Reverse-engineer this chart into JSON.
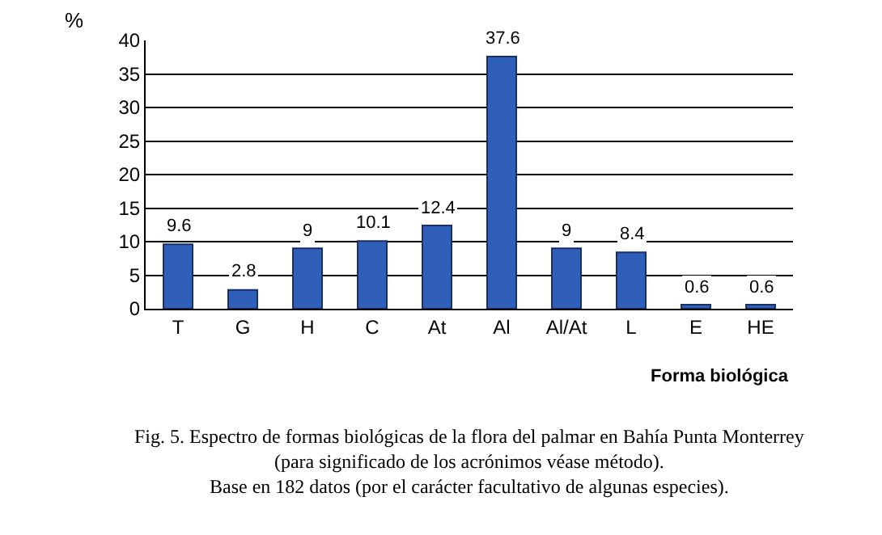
{
  "chart_data": {
    "type": "bar",
    "categories": [
      "T",
      "G",
      "H",
      "C",
      "At",
      "Al",
      "Al/At",
      "L",
      "E",
      "HE"
    ],
    "values": [
      9.6,
      2.8,
      9,
      10.1,
      12.4,
      37.6,
      9,
      8.4,
      0.6,
      0.6
    ],
    "color": "#2f5fb8",
    "ylim": [
      0,
      40
    ],
    "yticks": [
      0,
      5,
      10,
      15,
      20,
      25,
      30,
      35,
      40
    ],
    "grid": "y",
    "data_labels": true,
    "ylabel": "%",
    "xlabel": "Forma biológica",
    "annotations": [
      "Fig. 5. Espectro de formas biológicas de la flora del palmar en Bahía Punta Monterrey\n(para significado de los acrónimos véase método).\nBase en 182 datos (por el carácter facultativo de algunas especies)."
    ]
  }
}
